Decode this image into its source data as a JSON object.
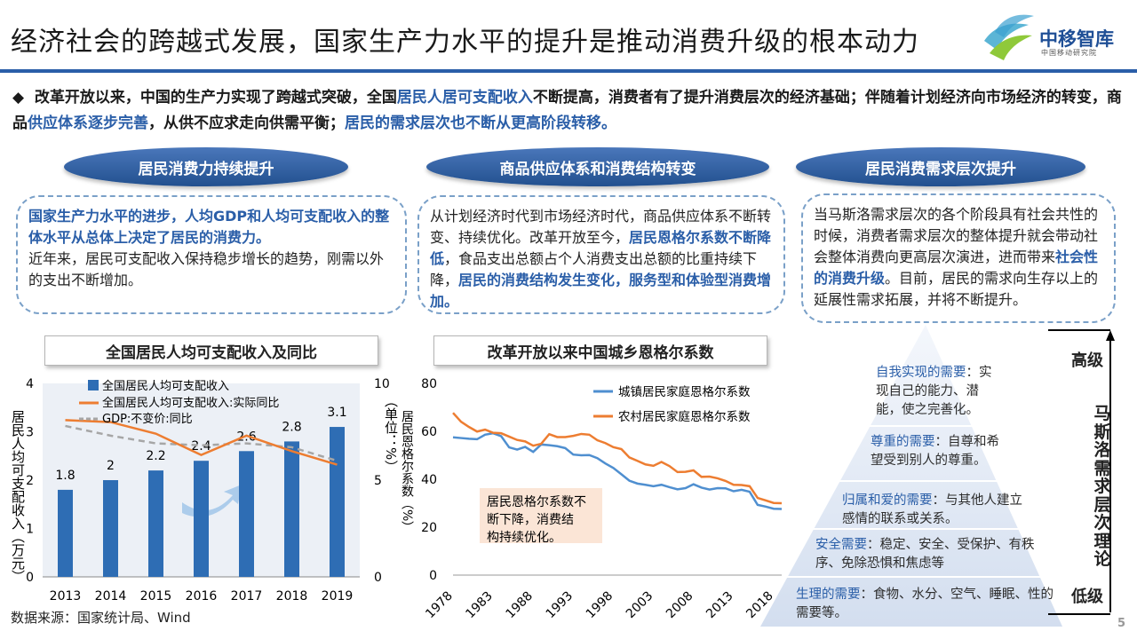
{
  "title": "经济社会的跨越式发展，国家生产力水平的提升是推动消费升级的根本动力",
  "logo": {
    "name": "中移智库",
    "sub": "中国移动研究院"
  },
  "intro": {
    "bullet": "◆",
    "p1": "改革开放以来，中国的生产力实现了跨越式突破，全国",
    "h1": "居民人居可支配收入",
    "p2": "不断提高，消费者有了提升消费层次的经济基础；伴随着计划经济向市场经济的转变，商品",
    "h2": "供应体系逐步完善",
    "p3": "，从供不应求走向供需平衡；",
    "h3": "居民的需求层次也不断从更高阶段转移。"
  },
  "columns": [
    {
      "pill": "居民消费力持续提升",
      "b1": "国家生产力水平的进步，人均GDP和人均可支配收入的整体水平从总体上决定了居民的消费力。",
      "t1": "近年来，居民可支配收入保持稳步增长的趋势，刚需以外的支出不断增加。"
    },
    {
      "pill": "商品供应体系和消费结构转变",
      "t1": "从计划经济时代到市场经济时代，商品供应体系不断转变、持续优化。改革开放至今，",
      "b1": "居民恩格尔系数不断降低",
      "t2": "，食品支出总额占个人消费支出总额的比重持续下降，",
      "b2": "居民的消费结构发生变化，服务型和体验型消费增加。"
    },
    {
      "pill": "居民消费需求层次提升",
      "t1": "当马斯洛需求层次的各个阶段具有社会共性的时候，消费者需求层次的整体提升就会带动社会整体消费向更高层次演进，进而带来",
      "b1": "社会性的消费升级",
      "t2": "。目前，居民的需求向生存以上的延展性需求拓展，并将不断提升。"
    }
  ],
  "chart_data": [
    {
      "type": "bar+line",
      "title": "全国居民人均可支配收入及同比",
      "categories": [
        "2013",
        "2014",
        "2015",
        "2016",
        "2017",
        "2018",
        "2019"
      ],
      "series": [
        {
          "name": "全国居民人均可支配收入",
          "axis": "left",
          "kind": "bar",
          "values": [
            1.8,
            2.0,
            2.2,
            2.4,
            2.6,
            2.8,
            3.1
          ],
          "color": "#2e6db4"
        },
        {
          "name": "全国居民人均可支配收入:实际同比",
          "axis": "right",
          "kind": "line",
          "values": [
            8.1,
            8.0,
            7.4,
            6.3,
            7.3,
            6.5,
            5.8
          ],
          "color": "#ed7d31"
        },
        {
          "name": "GDP:不变价:同比",
          "axis": "right",
          "kind": "dashed",
          "values": [
            7.8,
            7.3,
            6.9,
            6.8,
            6.9,
            6.7,
            6.0
          ],
          "color": "#a6a6a6"
        }
      ],
      "ylabel": "居民人均可支配收入（万元）",
      "y2label": "（单位：%）",
      "ylim": [
        0,
        4
      ],
      "yticks": [
        "0",
        "1",
        "2",
        "3",
        "4"
      ],
      "y2lim": [
        0,
        10
      ],
      "y2ticks": [
        "0",
        "5",
        "10"
      ]
    },
    {
      "type": "line",
      "title": "改革开放以来中国城乡恩格尔系数",
      "x": [
        1978,
        1979,
        1980,
        1981,
        1982,
        1983,
        1984,
        1985,
        1986,
        1987,
        1988,
        1989,
        1990,
        1991,
        1992,
        1993,
        1994,
        1995,
        1996,
        1997,
        1998,
        1999,
        2000,
        2001,
        2002,
        2003,
        2004,
        2005,
        2006,
        2007,
        2008,
        2009,
        2010,
        2011,
        2012,
        2013,
        2014,
        2015,
        2016,
        2017,
        2018,
        2019
      ],
      "xticks": [
        "1978",
        "1983",
        "1988",
        "1993",
        "1998",
        "2003",
        "2008",
        "2013",
        "2018"
      ],
      "series": [
        {
          "name": "城镇居民家庭恩格尔系数",
          "color": "#4f8fd0",
          "values": [
            57.5,
            57.2,
            56.9,
            56.7,
            58.6,
            59.2,
            58.0,
            53.3,
            52.4,
            53.5,
            51.4,
            54.5,
            54.2,
            53.8,
            53.0,
            50.3,
            50.0,
            50.1,
            48.8,
            46.6,
            44.7,
            42.1,
            39.4,
            38.2,
            37.7,
            37.1,
            37.7,
            36.7,
            35.8,
            36.3,
            37.9,
            36.5,
            35.7,
            36.3,
            36.2,
            35.0,
            35.6,
            34.8,
            29.3,
            28.6,
            27.7,
            27.6
          ]
        },
        {
          "name": "农村居民家庭恩格尔系数",
          "color": "#ed7d31",
          "values": [
            67.7,
            64.0,
            61.8,
            59.9,
            60.7,
            59.4,
            59.2,
            57.8,
            56.4,
            55.8,
            54.0,
            54.8,
            58.8,
            57.6,
            57.6,
            58.1,
            58.9,
            58.6,
            56.3,
            55.1,
            53.4,
            52.6,
            49.1,
            47.7,
            46.2,
            45.6,
            47.2,
            45.5,
            43.0,
            43.1,
            43.7,
            41.0,
            41.1,
            40.4,
            39.3,
            37.7,
            37.6,
            37.1,
            32.2,
            31.2,
            30.1,
            30.0
          ]
        }
      ],
      "ylabel": "居民恩格尔系数（%）",
      "ylim": [
        0,
        80
      ],
      "yticks": [
        "0",
        "20",
        "40",
        "60",
        "80"
      ],
      "annotation": "居民恩格尔系数不断下降，消费结构持续优化。"
    }
  ],
  "pyramid": {
    "tiers": [
      {
        "lvl": "自我实现的需要",
        "desc": "：实现自己的能力、潜能，使之完善化。"
      },
      {
        "lvl": "尊重的需要",
        "desc": "：自尊和希望受到别人的尊重。"
      },
      {
        "lvl": "归属和爱的需要",
        "desc": "：与其他人建立感情的联系或关系。"
      },
      {
        "lvl": "安全需要",
        "desc": "：稳定、安全、受保护、有秩序、免除恐惧和焦虑等"
      },
      {
        "lvl": "生理的需要",
        "desc": "：食物、水分、空气、睡眠、性的需要等。"
      }
    ],
    "high": "高级",
    "low": "低级",
    "theory": "马斯洛需求层次理论"
  },
  "source": "数据来源：国家统计局、Wind",
  "page_number": "5"
}
